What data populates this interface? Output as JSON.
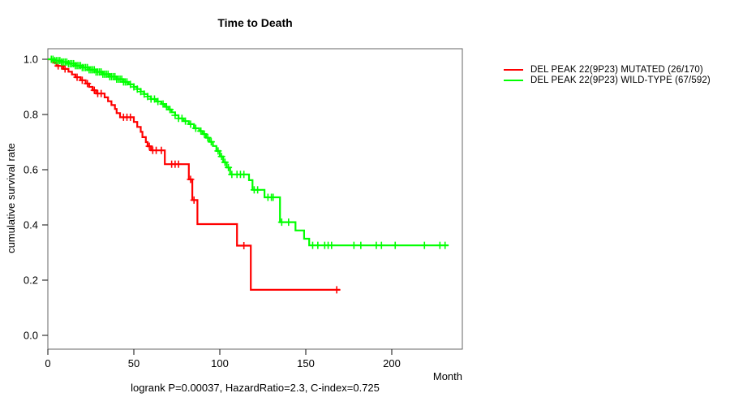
{
  "window": {
    "background": "#ffffff"
  },
  "chart_data": {
    "type": "line",
    "subtype": "kaplan-meier-step",
    "title": "Time to Death",
    "xlabel": "Month",
    "ylabel": "cumulative survival rate",
    "annotation": "logrank P=0.00037, HazardRatio=2.3, C-index=0.725",
    "xticks": [
      0,
      50,
      100,
      150,
      200
    ],
    "yticks": [
      0.0,
      0.2,
      0.4,
      0.6,
      0.8,
      1.0
    ],
    "xlim": [
      0,
      242
    ],
    "ylim": [
      0.0,
      1.0
    ],
    "grid": false,
    "legend_position": "right-outside-top",
    "axis_color": "#666666",
    "tick_color": "#333333",
    "series": [
      {
        "name": "DEL PEAK 22(9P23) MUTATED (26/170)",
        "color": "#ff0000",
        "n_events": 26,
        "n_total": 170,
        "end_month": 170,
        "steps": [
          [
            0,
            1.0
          ],
          [
            3,
            0.988
          ],
          [
            5,
            0.976
          ],
          [
            9,
            0.965
          ],
          [
            12,
            0.955
          ],
          [
            14,
            0.945
          ],
          [
            16,
            0.935
          ],
          [
            19,
            0.924
          ],
          [
            22,
            0.912
          ],
          [
            24,
            0.9
          ],
          [
            26,
            0.888
          ],
          [
            28,
            0.876
          ],
          [
            33,
            0.862
          ],
          [
            35,
            0.848
          ],
          [
            37,
            0.834
          ],
          [
            39,
            0.82
          ],
          [
            40,
            0.805
          ],
          [
            42,
            0.79
          ],
          [
            50,
            0.773
          ],
          [
            52,
            0.755
          ],
          [
            54,
            0.737
          ],
          [
            55,
            0.718
          ],
          [
            57,
            0.7
          ],
          [
            58,
            0.685
          ],
          [
            60,
            0.67
          ],
          [
            68,
            0.62
          ],
          [
            82,
            0.565
          ],
          [
            84,
            0.49
          ],
          [
            87,
            0.403
          ],
          [
            110,
            0.325
          ],
          [
            118,
            0.165
          ]
        ],
        "censor_months": [
          6,
          8,
          10,
          17,
          20,
          23,
          27,
          29,
          31,
          44,
          46,
          48,
          59,
          61,
          63,
          66,
          72,
          74,
          76,
          83,
          85,
          114,
          168
        ]
      },
      {
        "name": "DEL PEAK 22(9P23) WILD-TYPE (67/592)",
        "color": "#00ff00",
        "n_events": 67,
        "n_total": 592,
        "end_month": 233,
        "steps": [
          [
            0,
            1.0
          ],
          [
            4,
            0.995
          ],
          [
            8,
            0.99
          ],
          [
            12,
            0.984
          ],
          [
            16,
            0.977
          ],
          [
            20,
            0.97
          ],
          [
            24,
            0.962
          ],
          [
            28,
            0.954
          ],
          [
            32,
            0.946
          ],
          [
            36,
            0.937
          ],
          [
            40,
            0.928
          ],
          [
            44,
            0.918
          ],
          [
            47,
            0.909
          ],
          [
            50,
            0.9
          ],
          [
            52,
            0.892
          ],
          [
            54,
            0.883
          ],
          [
            56,
            0.874
          ],
          [
            58,
            0.865
          ],
          [
            60,
            0.856
          ],
          [
            63,
            0.847
          ],
          [
            66,
            0.838
          ],
          [
            68,
            0.828
          ],
          [
            70,
            0.818
          ],
          [
            72,
            0.808
          ],
          [
            74,
            0.797
          ],
          [
            76,
            0.786
          ],
          [
            79,
            0.776
          ],
          [
            82,
            0.765
          ],
          [
            85,
            0.75
          ],
          [
            88,
            0.74
          ],
          [
            90,
            0.729
          ],
          [
            92,
            0.716
          ],
          [
            94,
            0.701
          ],
          [
            96,
            0.686
          ],
          [
            98,
            0.668
          ],
          [
            100,
            0.648
          ],
          [
            102,
            0.627
          ],
          [
            104,
            0.608
          ],
          [
            106,
            0.583
          ],
          [
            117,
            0.562
          ],
          [
            119,
            0.527
          ],
          [
            126,
            0.5
          ],
          [
            135,
            0.41
          ],
          [
            144,
            0.38
          ],
          [
            149,
            0.35
          ],
          [
            152,
            0.326
          ]
        ],
        "censor_months": [
          2,
          3,
          4,
          5,
          6,
          7,
          8,
          9,
          10,
          11,
          12,
          13,
          14,
          15,
          16,
          17,
          18,
          19,
          20,
          21,
          22,
          23,
          24,
          25,
          26,
          27,
          28,
          29,
          30,
          31,
          32,
          33,
          34,
          35,
          36,
          37,
          38,
          39,
          40,
          41,
          42,
          43,
          44,
          45,
          46,
          48,
          50,
          52,
          54,
          56,
          58,
          60,
          62,
          64,
          67,
          69,
          71,
          74,
          76,
          78,
          80,
          83,
          86,
          89,
          91,
          93,
          95,
          99,
          101,
          103,
          105,
          107,
          110,
          112,
          114,
          120,
          122,
          128,
          130,
          131,
          136,
          140,
          154,
          157,
          161,
          163,
          165,
          178,
          182,
          191,
          194,
          202,
          219,
          228,
          231
        ]
      }
    ]
  },
  "legend": {
    "items": [
      {
        "label": "DEL PEAK 22(9P23) MUTATED (26/170)",
        "color": "#ff0000"
      },
      {
        "label": "DEL PEAK 22(9P23) WILD-TYPE (67/592)",
        "color": "#00ff00"
      }
    ]
  },
  "labels": {
    "title": "Time to Death",
    "y_axis": "cumulative survival rate",
    "x_axis": "Month",
    "footer": "logrank P=0.00037, HazardRatio=2.3, C-index=0.725"
  }
}
